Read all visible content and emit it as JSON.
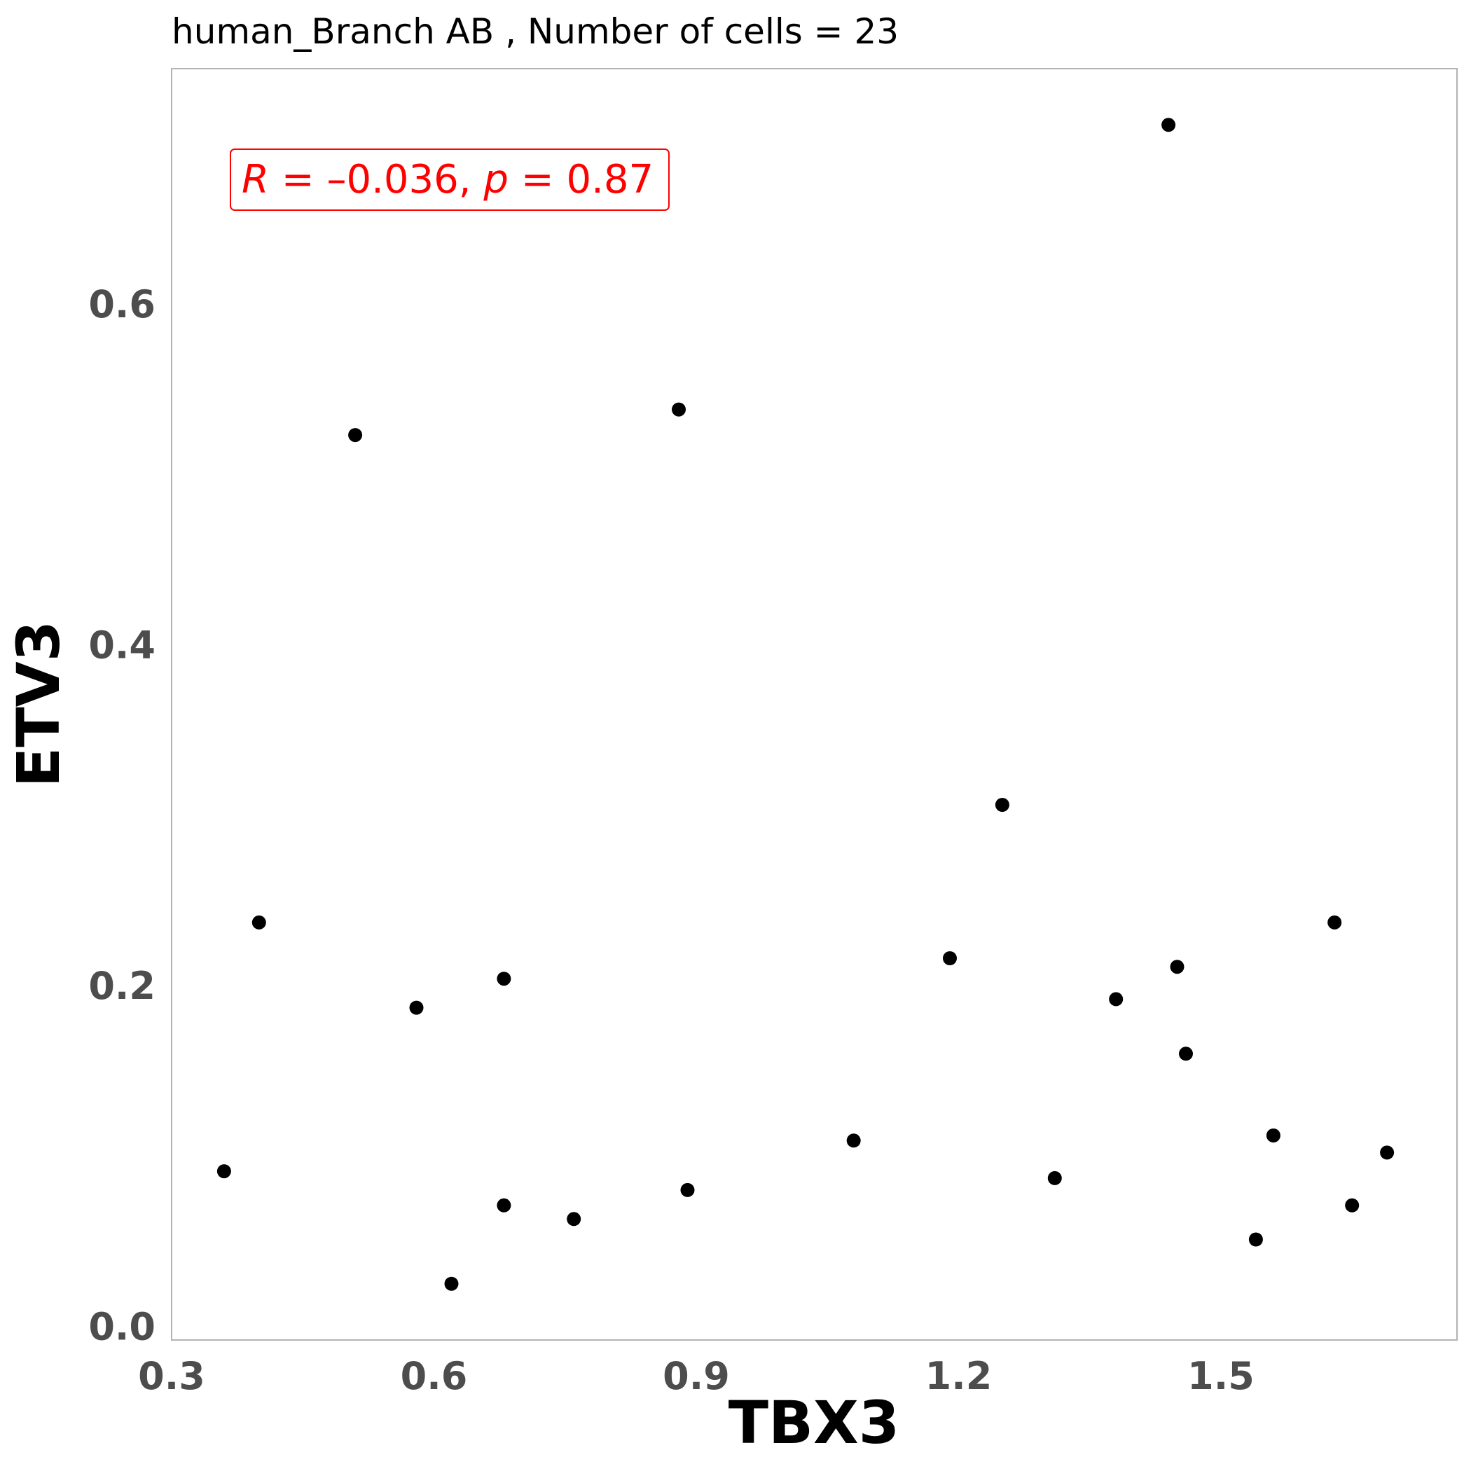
{
  "chart_data": {
    "type": "scatter",
    "title": "human_Branch AB , Number of cells =  23",
    "xlabel": "TBX3",
    "ylabel": "ETV3",
    "xlim": [
      0.3,
      1.77
    ],
    "ylim": [
      -0.008,
      0.738
    ],
    "xticks": [
      0.3,
      0.6,
      0.9,
      1.2,
      1.5
    ],
    "xtick_labels": [
      "0.3",
      "0.6",
      "0.9",
      "1.2",
      "1.5"
    ],
    "yticks": [
      0.0,
      0.2,
      0.4,
      0.6
    ],
    "ytick_labels": [
      "0.0",
      "0.2",
      "0.4",
      "0.6"
    ],
    "grid": false,
    "point_color": "#000000",
    "annotation": {
      "r_symbol": "R",
      "r_eq": " = –0.036, ",
      "p_symbol": "p",
      "p_eq": " = 0.87",
      "color": "#ff0000"
    },
    "points": [
      {
        "x": 1.44,
        "y": 0.705
      },
      {
        "x": 0.88,
        "y": 0.538
      },
      {
        "x": 0.51,
        "y": 0.523
      },
      {
        "x": 1.25,
        "y": 0.306
      },
      {
        "x": 0.4,
        "y": 0.237
      },
      {
        "x": 1.63,
        "y": 0.237
      },
      {
        "x": 1.19,
        "y": 0.216
      },
      {
        "x": 1.45,
        "y": 0.211
      },
      {
        "x": 0.68,
        "y": 0.204
      },
      {
        "x": 1.38,
        "y": 0.192
      },
      {
        "x": 0.58,
        "y": 0.187
      },
      {
        "x": 1.46,
        "y": 0.16
      },
      {
        "x": 1.56,
        "y": 0.112
      },
      {
        "x": 1.08,
        "y": 0.109
      },
      {
        "x": 1.69,
        "y": 0.102
      },
      {
        "x": 0.36,
        "y": 0.091
      },
      {
        "x": 1.31,
        "y": 0.087
      },
      {
        "x": 0.89,
        "y": 0.08
      },
      {
        "x": 0.68,
        "y": 0.071
      },
      {
        "x": 1.65,
        "y": 0.071
      },
      {
        "x": 0.76,
        "y": 0.063
      },
      {
        "x": 1.54,
        "y": 0.051
      },
      {
        "x": 0.62,
        "y": 0.025
      }
    ]
  }
}
